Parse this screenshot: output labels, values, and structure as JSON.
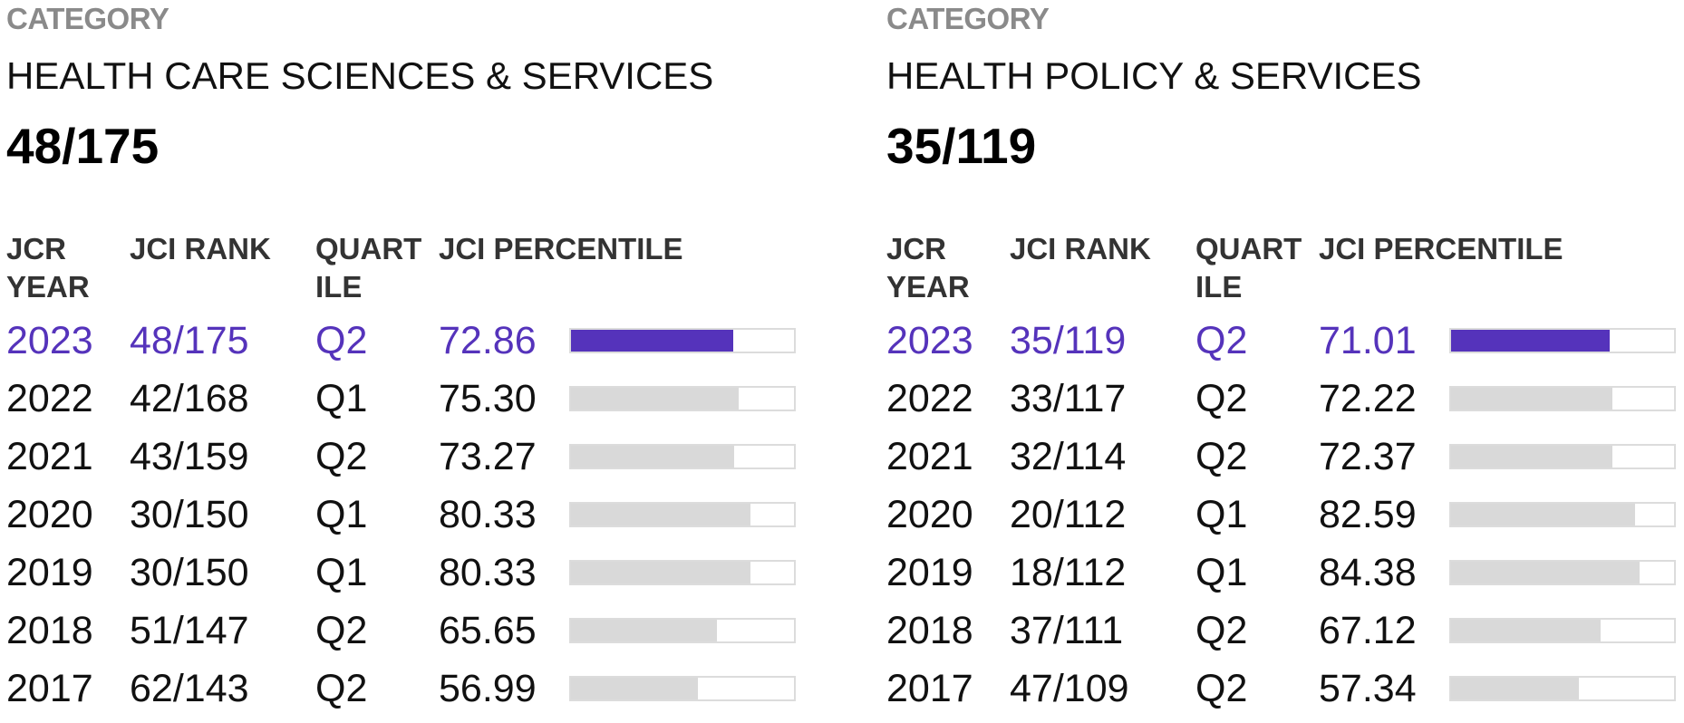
{
  "colors": {
    "accent": "#5533bb",
    "bar_track": "#d9d9d9",
    "label_gray": "#8a8a8a"
  },
  "panels": [
    {
      "category_label": "CATEGORY",
      "category_name": "HEALTH CARE SCIENCES & SERVICES",
      "category_rank": "48/175",
      "headers": {
        "year_line1": "JCR",
        "year_line2": "YEAR",
        "rank": "JCI RANK",
        "quartile_line1": "QUART",
        "quartile_line2": "ILE",
        "percentile": "JCI PERCENTILE"
      },
      "rows": [
        {
          "year": "2023",
          "rank": "48/175",
          "quartile": "Q2",
          "percentile": "72.86",
          "current": true
        },
        {
          "year": "2022",
          "rank": "42/168",
          "quartile": "Q1",
          "percentile": "75.30",
          "current": false
        },
        {
          "year": "2021",
          "rank": "43/159",
          "quartile": "Q2",
          "percentile": "73.27",
          "current": false
        },
        {
          "year": "2020",
          "rank": "30/150",
          "quartile": "Q1",
          "percentile": "80.33",
          "current": false
        },
        {
          "year": "2019",
          "rank": "30/150",
          "quartile": "Q1",
          "percentile": "80.33",
          "current": false
        },
        {
          "year": "2018",
          "rank": "51/147",
          "quartile": "Q2",
          "percentile": "65.65",
          "current": false
        },
        {
          "year": "2017",
          "rank": "62/143",
          "quartile": "Q2",
          "percentile": "56.99",
          "current": false
        }
      ]
    },
    {
      "category_label": "CATEGORY",
      "category_name": "HEALTH POLICY & SERVICES",
      "category_rank": "35/119",
      "headers": {
        "year_line1": "JCR",
        "year_line2": "YEAR",
        "rank": "JCI RANK",
        "quartile_line1": "QUART",
        "quartile_line2": "ILE",
        "percentile": "JCI PERCENTILE"
      },
      "rows": [
        {
          "year": "2023",
          "rank": "35/119",
          "quartile": "Q2",
          "percentile": "71.01",
          "current": true
        },
        {
          "year": "2022",
          "rank": "33/117",
          "quartile": "Q2",
          "percentile": "72.22",
          "current": false
        },
        {
          "year": "2021",
          "rank": "32/114",
          "quartile": "Q2",
          "percentile": "72.37",
          "current": false
        },
        {
          "year": "2020",
          "rank": "20/112",
          "quartile": "Q1",
          "percentile": "82.59",
          "current": false
        },
        {
          "year": "2019",
          "rank": "18/112",
          "quartile": "Q1",
          "percentile": "84.38",
          "current": false
        },
        {
          "year": "2018",
          "rank": "37/111",
          "quartile": "Q2",
          "percentile": "67.12",
          "current": false
        },
        {
          "year": "2017",
          "rank": "47/109",
          "quartile": "Q2",
          "percentile": "57.34",
          "current": false
        }
      ]
    }
  ]
}
